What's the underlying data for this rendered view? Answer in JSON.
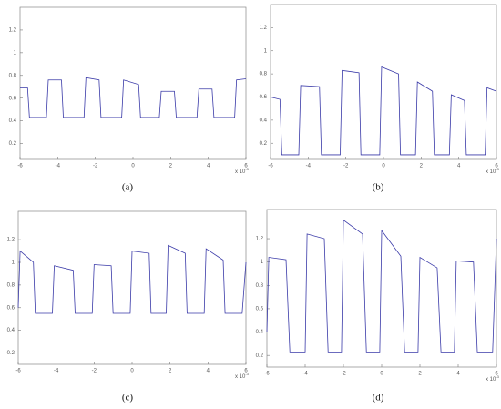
{
  "chart_data": [
    {
      "type": "line",
      "caption": "(a)",
      "x_exponent_base": "x 10",
      "x_exponent": "-3",
      "xlim": [
        -6,
        6
      ],
      "xticks": [
        -6,
        -4,
        -2,
        0,
        2,
        4,
        6
      ],
      "ylim": [
        0.06,
        1.4
      ],
      "yticks": [
        0.2,
        0.4,
        0.6,
        0.8,
        1,
        1.2
      ],
      "color": "#3a3aa8",
      "x": [
        -6,
        -5.6,
        -5.5,
        -4.6,
        -4.5,
        -3.8,
        -3.7,
        -2.6,
        -2.5,
        -1.8,
        -1.7,
        -0.6,
        -0.5,
        0.3,
        0.4,
        1.4,
        1.5,
        2.2,
        2.3,
        3.4,
        3.5,
        4.2,
        4.3,
        5.4,
        5.5,
        6
      ],
      "values": [
        0.69,
        0.69,
        0.43,
        0.43,
        0.76,
        0.76,
        0.43,
        0.43,
        0.78,
        0.76,
        0.43,
        0.43,
        0.76,
        0.72,
        0.43,
        0.43,
        0.66,
        0.66,
        0.43,
        0.43,
        0.68,
        0.68,
        0.43,
        0.43,
        0.76,
        0.77
      ]
    },
    {
      "type": "line",
      "caption": "(b)",
      "x_exponent_base": "x 10",
      "x_exponent": "-3",
      "xlim": [
        -6,
        6
      ],
      "xticks": [
        -6,
        -4,
        -2,
        0,
        2,
        4,
        6
      ],
      "ylim": [
        0.06,
        1.4
      ],
      "yticks": [
        0.2,
        0.4,
        0.6,
        0.8,
        1,
        1.2
      ],
      "color": "#3a3aa8",
      "x": [
        -6,
        -5.5,
        -5.4,
        -4.5,
        -4.4,
        -3.4,
        -3.3,
        -2.3,
        -2.2,
        -1.3,
        -1.2,
        -0.2,
        -0.1,
        0.8,
        0.9,
        1.7,
        1.8,
        2.6,
        2.7,
        3.5,
        3.6,
        4.3,
        4.4,
        5.4,
        5.5,
        6
      ],
      "values": [
        0.6,
        0.58,
        0.1,
        0.1,
        0.7,
        0.69,
        0.1,
        0.1,
        0.83,
        0.81,
        0.1,
        0.1,
        0.86,
        0.8,
        0.1,
        0.1,
        0.73,
        0.65,
        0.1,
        0.1,
        0.62,
        0.57,
        0.1,
        0.1,
        0.68,
        0.65
      ]
    },
    {
      "type": "line",
      "caption": "(c)",
      "x_exponent_base": "x 10",
      "x_exponent": "-3",
      "xlim": [
        -6,
        6
      ],
      "xticks": [
        -6,
        -4,
        -2,
        0,
        2,
        4,
        6
      ],
      "ylim": [
        0.1,
        1.45
      ],
      "yticks": [
        0.2,
        0.4,
        0.6,
        0.8,
        1,
        1.2
      ],
      "color": "#3a3aa8",
      "x": [
        -6,
        -5.9,
        -5.2,
        -5.1,
        -4.2,
        -4.1,
        -3.1,
        -3.0,
        -2.1,
        -2.0,
        -1.1,
        -1.0,
        -0.1,
        0,
        0.9,
        1.0,
        1.8,
        1.9,
        2.8,
        2.9,
        3.8,
        3.9,
        4.8,
        4.9,
        5.8,
        6
      ],
      "values": [
        0.6,
        1.1,
        1.0,
        0.55,
        0.55,
        0.97,
        0.93,
        0.55,
        0.55,
        0.98,
        0.97,
        0.55,
        0.55,
        1.1,
        1.08,
        0.55,
        0.55,
        1.15,
        1.08,
        0.55,
        0.55,
        1.12,
        1.02,
        0.55,
        0.55,
        1.0
      ]
    },
    {
      "type": "line",
      "caption": "(d)",
      "x_exponent_base": "x 10",
      "x_exponent": "-3",
      "xlim": [
        -6,
        6
      ],
      "xticks": [
        -6,
        -4,
        -2,
        0,
        2,
        4,
        6
      ],
      "ylim": [
        0.1,
        1.45
      ],
      "yticks": [
        0.2,
        0.4,
        0.6,
        0.8,
        1,
        1.2
      ],
      "color": "#3a3aa8",
      "x": [
        -6,
        -5.9,
        -5.0,
        -4.8,
        -4.0,
        -3.9,
        -3.0,
        -2.8,
        -2.1,
        -2.0,
        -1.0,
        -0.8,
        -0.1,
        0,
        1.0,
        1.2,
        1.9,
        2.0,
        2.9,
        3.1,
        3.8,
        3.9,
        4.8,
        5.0,
        5.8,
        6
      ],
      "values": [
        0.4,
        1.04,
        1.02,
        0.23,
        0.23,
        1.24,
        1.2,
        0.23,
        0.23,
        1.36,
        1.24,
        0.23,
        0.23,
        1.27,
        1.05,
        0.23,
        0.23,
        1.04,
        0.95,
        0.23,
        0.23,
        1.01,
        1.0,
        0.23,
        0.23,
        1.2
      ]
    }
  ]
}
